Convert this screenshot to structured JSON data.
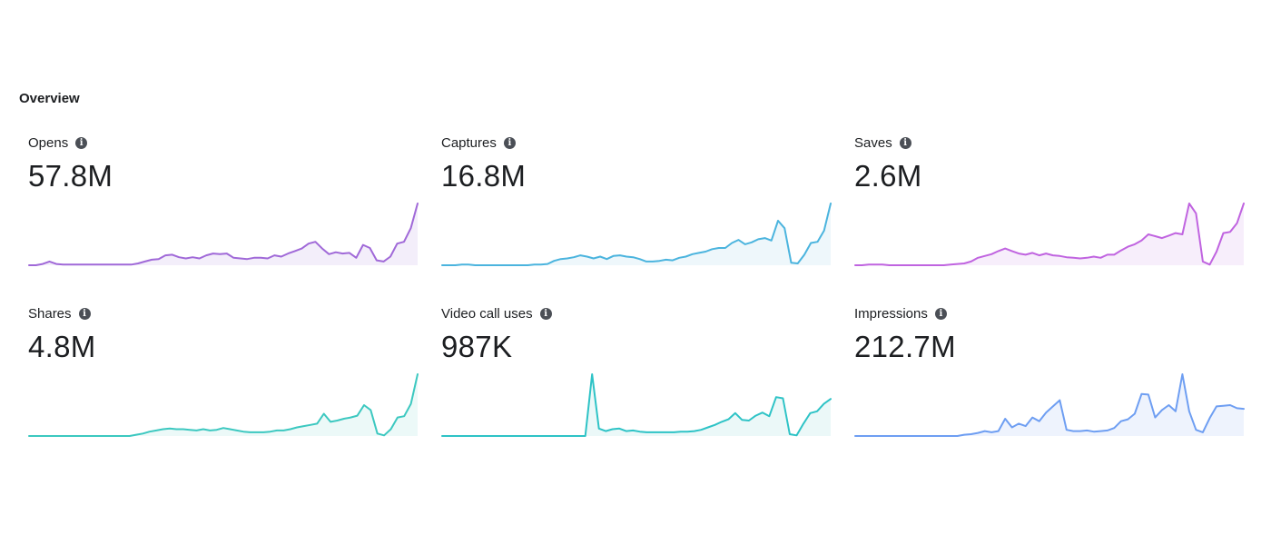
{
  "overview": {
    "title": "Overview"
  },
  "chart_data": [
    {
      "type": "line",
      "title": "Opens",
      "value": "57.8M",
      "color": "#a069d8",
      "fill": "#f3eefa",
      "ylim": [
        0,
        100
      ],
      "values": [
        0,
        0,
        2,
        6,
        2,
        1,
        1,
        1,
        1,
        1,
        1,
        1,
        1,
        1,
        1,
        1,
        3,
        6,
        9,
        10,
        16,
        17,
        13,
        11,
        13,
        11,
        16,
        19,
        18,
        19,
        12,
        11,
        10,
        12,
        12,
        11,
        16,
        14,
        19,
        23,
        27,
        35,
        38,
        27,
        18,
        21,
        19,
        20,
        12,
        33,
        28,
        8,
        6,
        14,
        35,
        38,
        60,
        100
      ]
    },
    {
      "type": "line",
      "title": "Captures",
      "value": "16.8M",
      "color": "#4bb4de",
      "fill": "#eef7fb",
      "ylim": [
        0,
        100
      ],
      "values": [
        0,
        0,
        0,
        1,
        1,
        0,
        0,
        0,
        0,
        0,
        0,
        0,
        0,
        0,
        1,
        1,
        2,
        7,
        10,
        11,
        13,
        16,
        14,
        11,
        14,
        10,
        15,
        16,
        14,
        13,
        10,
        6,
        6,
        7,
        9,
        8,
        12,
        14,
        18,
        20,
        22,
        26,
        28,
        28,
        36,
        41,
        34,
        37,
        42,
        44,
        40,
        72,
        60,
        4,
        3,
        17,
        36,
        38,
        56,
        100
      ]
    },
    {
      "type": "line",
      "title": "Saves",
      "value": "2.6M",
      "color": "#c064e0",
      "fill": "#f7eefb",
      "ylim": [
        0,
        100
      ],
      "values": [
        0,
        0,
        1,
        1,
        1,
        0,
        0,
        0,
        0,
        0,
        0,
        0,
        0,
        0,
        1,
        2,
        3,
        6,
        12,
        15,
        18,
        23,
        27,
        23,
        19,
        17,
        20,
        16,
        19,
        16,
        15,
        13,
        12,
        11,
        12,
        14,
        12,
        17,
        17,
        24,
        30,
        34,
        40,
        50,
        47,
        44,
        48,
        52,
        50,
        100,
        84,
        6,
        1,
        22,
        52,
        54,
        68,
        100
      ]
    },
    {
      "type": "line",
      "title": "Shares",
      "value": "4.8M",
      "color": "#3cc8c0",
      "fill": "#ecf9f8",
      "ylim": [
        0,
        100
      ],
      "values": [
        0,
        0,
        0,
        0,
        0,
        0,
        0,
        0,
        0,
        0,
        0,
        0,
        0,
        0,
        0,
        0,
        2,
        4,
        7,
        9,
        11,
        12,
        11,
        11,
        10,
        9,
        11,
        9,
        10,
        13,
        11,
        9,
        7,
        6,
        6,
        6,
        7,
        9,
        9,
        11,
        14,
        16,
        18,
        20,
        36,
        23,
        25,
        28,
        30,
        33,
        50,
        42,
        4,
        1,
        11,
        30,
        32,
        52,
        100
      ]
    },
    {
      "type": "line",
      "title": "Video call uses",
      "value": "987K",
      "color": "#2ec3c6",
      "fill": "#ebf8f8",
      "ylim": [
        0,
        100
      ],
      "values": [
        0,
        0,
        0,
        0,
        0,
        0,
        0,
        0,
        0,
        0,
        0,
        0,
        0,
        0,
        0,
        0,
        0,
        0,
        0,
        0,
        0,
        0,
        100,
        12,
        8,
        11,
        12,
        8,
        9,
        7,
        6,
        6,
        6,
        6,
        6,
        7,
        7,
        8,
        10,
        14,
        18,
        23,
        27,
        37,
        26,
        25,
        33,
        38,
        32,
        63,
        61,
        3,
        1,
        20,
        37,
        40,
        52,
        60
      ]
    },
    {
      "type": "line",
      "title": "Impressions",
      "value": "212.7M",
      "color": "#6e9ef2",
      "fill": "#eef3fd",
      "ylim": [
        0,
        100
      ],
      "values": [
        0,
        0,
        0,
        0,
        0,
        0,
        0,
        0,
        0,
        0,
        0,
        0,
        0,
        0,
        0,
        0,
        2,
        3,
        5,
        8,
        6,
        8,
        28,
        14,
        20,
        16,
        30,
        24,
        38,
        48,
        58,
        10,
        8,
        8,
        9,
        7,
        8,
        9,
        13,
        24,
        27,
        36,
        68,
        67,
        30,
        42,
        50,
        40,
        100,
        40,
        10,
        6,
        29,
        48,
        49,
        50,
        45,
        44
      ]
    }
  ]
}
